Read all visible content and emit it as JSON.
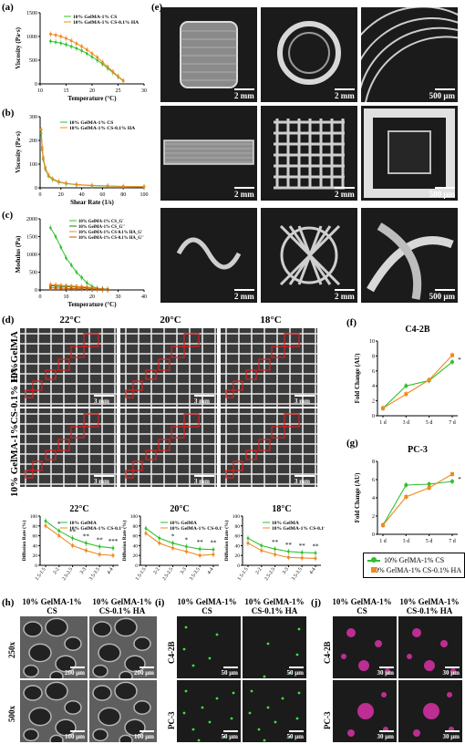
{
  "panels": {
    "a": "(a)",
    "b": "(b)",
    "c": "(c)",
    "d": "(d)",
    "e": "(e)",
    "f": "(f)",
    "g": "(g)",
    "h": "(h)",
    "i": "(i)",
    "j": "(j)"
  },
  "colors": {
    "cs": "#2fbf2f",
    "ha": "#f08a20",
    "red_box": "#e02020"
  },
  "chart_data": [
    {
      "id": "a",
      "type": "line",
      "xlabel": "Temperature (°C)",
      "ylabel": "Viscosity (Pa·s)",
      "xticks": [
        "10",
        "15",
        "20",
        "25",
        "30"
      ],
      "yticks": [
        "0",
        "500",
        "1000",
        "1500"
      ],
      "xlim": [
        10,
        30
      ],
      "ylim": [
        0,
        1500
      ],
      "series": [
        {
          "name": "10% GelMA-1% CS",
          "x": [
            12,
            13,
            14,
            15,
            16,
            17,
            18,
            19,
            20,
            21,
            22,
            23,
            24,
            25,
            26
          ],
          "y": [
            900,
            880,
            860,
            830,
            790,
            750,
            700,
            640,
            570,
            500,
            420,
            330,
            240,
            150,
            60
          ]
        },
        {
          "name": "10% GelMA-1% CS-0.1% HA",
          "x": [
            12,
            13,
            14,
            15,
            16,
            17,
            18,
            19,
            20,
            21,
            22,
            23,
            24,
            25,
            26
          ],
          "y": [
            1050,
            1030,
            1000,
            960,
            910,
            850,
            790,
            720,
            640,
            560,
            460,
            360,
            260,
            160,
            70
          ]
        }
      ]
    },
    {
      "id": "b",
      "type": "line",
      "xlabel": "Shear Rate (1/s)",
      "ylabel": "Viscosity (Pa·s)",
      "xticks": [
        "0",
        "20",
        "40",
        "60",
        "80",
        "100"
      ],
      "yticks": [
        "0",
        "100",
        "200",
        "300"
      ],
      "xlim": [
        0,
        100
      ],
      "ylim": [
        0,
        300
      ],
      "series": [
        {
          "name": "10% GelMA-1% CS",
          "x": [
            1,
            2,
            3,
            5,
            8,
            12,
            18,
            25,
            35,
            50,
            65,
            80,
            100
          ],
          "y": [
            230,
            160,
            120,
            80,
            50,
            35,
            24,
            18,
            13,
            9,
            7,
            6,
            5
          ]
        },
        {
          "name": "10% GelMA-1% CS-0.1% HA",
          "x": [
            1,
            2,
            3,
            5,
            8,
            12,
            18,
            25,
            35,
            50,
            65,
            80,
            100
          ],
          "y": [
            245,
            170,
            128,
            86,
            54,
            38,
            26,
            19,
            14,
            10,
            8,
            6,
            5
          ]
        }
      ]
    },
    {
      "id": "c",
      "type": "line",
      "xlabel": "Temperature (°C)",
      "ylabel": "Modulus (Pa)",
      "xticks": [
        "0",
        "10",
        "20",
        "30",
        "40"
      ],
      "yticks": [
        "0",
        "500",
        "1000",
        "1500",
        "2000"
      ],
      "xlim": [
        0,
        40
      ],
      "ylim": [
        0,
        2000
      ],
      "series": [
        {
          "name": "10% GelMA-1% CS_G'",
          "x": [
            4,
            6,
            8,
            10,
            12,
            14,
            16,
            18,
            20,
            22,
            24,
            26
          ],
          "y": [
            1750,
            1500,
            1200,
            900,
            700,
            500,
            350,
            200,
            100,
            50,
            20,
            10
          ]
        },
        {
          "name": "10% GelMA-1% CS_G''",
          "x": [
            4,
            6,
            8,
            10,
            12,
            14,
            16,
            18,
            20,
            22,
            24,
            26
          ],
          "y": [
            120,
            110,
            100,
            95,
            90,
            80,
            70,
            60,
            50,
            40,
            30,
            20
          ]
        },
        {
          "name": "10% GelMA-1% CS-0.1% HA_G'",
          "x": [
            4,
            6,
            8,
            10,
            12,
            14,
            16,
            18,
            20,
            22,
            24,
            26
          ],
          "y": [
            150,
            140,
            130,
            120,
            110,
            100,
            90,
            80,
            60,
            40,
            20,
            10
          ]
        },
        {
          "name": "10% GelMA-1% CS-0.1% HA_G''",
          "x": [
            4,
            6,
            8,
            10,
            12,
            14,
            16,
            18,
            20,
            22,
            24,
            26
          ],
          "y": [
            60,
            55,
            50,
            45,
            40,
            35,
            30,
            25,
            20,
            15,
            10,
            5
          ]
        }
      ]
    },
    {
      "id": "d1",
      "type": "line",
      "title": "22°C",
      "ylabel": "Diffusion Rate (%)",
      "categories": [
        "1.5-1.5",
        "2-2",
        "2.5-2.5",
        "3-3",
        "3.5-3.5",
        "4-4"
      ],
      "yticks": [
        "0",
        "20",
        "40",
        "60",
        "80",
        "100"
      ],
      "ylim": [
        0,
        100
      ],
      "annotations": [
        "*",
        "**",
        "**",
        "**",
        "***"
      ],
      "series": [
        {
          "name": "10% GelMA",
          "values": [
            90,
            70,
            55,
            45,
            38,
            35
          ]
        },
        {
          "name": "10% GelMA-1% CS-0.1% HA",
          "values": [
            80,
            60,
            40,
            30,
            22,
            20
          ]
        }
      ]
    },
    {
      "id": "d2",
      "type": "line",
      "title": "20°C",
      "ylabel": "Diffusion Rate (%)",
      "categories": [
        "1.5-1.5",
        "2-2",
        "2.5-2.5",
        "3-3",
        "3.5-3.5",
        "4-4"
      ],
      "yticks": [
        "0",
        "20",
        "40",
        "60",
        "80",
        "100"
      ],
      "ylim": [
        0,
        100
      ],
      "annotations": [
        "*",
        "*",
        "**",
        "**"
      ],
      "series": [
        {
          "name": "10% GelMA",
          "values": [
            75,
            55,
            45,
            38,
            33,
            32
          ]
        },
        {
          "name": "10% GelMA-1% CS-0.1% HA",
          "values": [
            65,
            45,
            35,
            28,
            20,
            22
          ]
        }
      ]
    },
    {
      "id": "d3",
      "type": "line",
      "title": "18°C",
      "ylabel": "Diffusion Rate (%)",
      "categories": [
        "1.5-1.5",
        "2-2",
        "2.5-2.5",
        "3-3",
        "3.5-3.5",
        "4-4"
      ],
      "yticks": [
        "0",
        "20",
        "40",
        "60",
        "80",
        "100"
      ],
      "ylim": [
        0,
        100
      ],
      "annotations": [
        "**",
        "**",
        "**",
        "**"
      ],
      "series": [
        {
          "name": "10% GelMA",
          "values": [
            55,
            40,
            33,
            28,
            26,
            25
          ]
        },
        {
          "name": "10% GelMA-1% CS-0.1% HA",
          "values": [
            45,
            30,
            22,
            16,
            15,
            14
          ]
        }
      ]
    },
    {
      "id": "f",
      "type": "line",
      "title": "C4-2B",
      "ylabel": "Fold Change (AU)",
      "categories": [
        "1 d",
        "3 d",
        "5 d",
        "7 d"
      ],
      "yticks": [
        "0",
        "2",
        "4",
        "6",
        "8",
        "10"
      ],
      "ylim": [
        0,
        10
      ],
      "annotations": [
        "*"
      ],
      "series": [
        {
          "name": "10% GelMA-1% CS",
          "values": [
            1,
            4.0,
            4.7,
            7.2
          ]
        },
        {
          "name": "10% GelMA-1% CS-0.1% HA",
          "values": [
            1,
            2.9,
            4.8,
            8.1
          ]
        }
      ]
    },
    {
      "id": "g",
      "type": "line",
      "title": "PC-3",
      "ylabel": "Fold Change (AU)",
      "categories": [
        "1 d",
        "3 d",
        "5 d",
        "7 d"
      ],
      "yticks": [
        "0",
        "2",
        "4",
        "6",
        "8"
      ],
      "ylim": [
        0,
        8
      ],
      "annotations": [
        "*"
      ],
      "series": [
        {
          "name": "10% GelMA-1% CS",
          "values": [
            1,
            5.4,
            5.5,
            5.8
          ]
        },
        {
          "name": "10% GelMA-1% CS-0.1% HA",
          "values": [
            1,
            4.1,
            5.1,
            6.6
          ]
        }
      ]
    }
  ],
  "e": {
    "scales": [
      "2 mm",
      "2 mm",
      "500 μm",
      "2 mm",
      "2 mm",
      "500 μm",
      "2 mm",
      "2 mm",
      "500 μm"
    ]
  },
  "d": {
    "temps": [
      "22°C",
      "20°C",
      "18°C"
    ],
    "row_labels": [
      "10%GelMA",
      "10% GelMA-1%CS-0.1% HA"
    ],
    "scale": "3 mm"
  },
  "fg_legend": [
    "10% GelMA-1% CS",
    "10% GelMA-1% CS-0.1% HA"
  ],
  "h": {
    "col_titles": [
      "10% GelMA-1% CS",
      "10% GelMA-1% CS-0.1% HA"
    ],
    "row_labels": [
      "250x",
      "500x"
    ],
    "scales": [
      "200 μm",
      "200 μm",
      "100 μm",
      "100 μm"
    ]
  },
  "i": {
    "col_titles": [
      "10% GelMA-1% CS",
      "10% GelMA-1% CS-0.1% HA"
    ],
    "row_labels": [
      "C4-2B",
      "PC-3"
    ],
    "scale": "50 μm"
  },
  "j": {
    "col_titles": [
      "10% GelMA-1% CS",
      "10% GelMA-1% CS-0.1% HA"
    ],
    "row_labels": [
      "C4-2B",
      "PC-3"
    ],
    "scale": "30 μm"
  }
}
